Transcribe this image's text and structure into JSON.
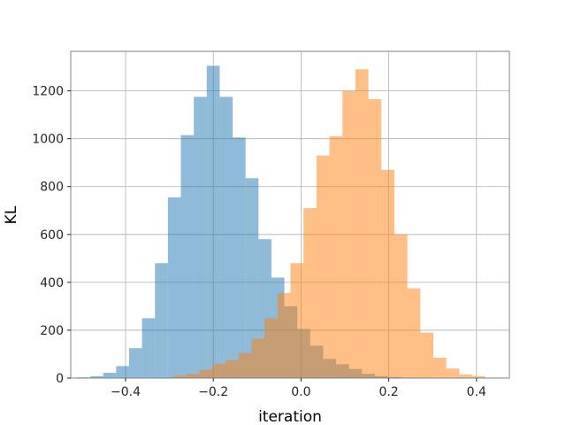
{
  "chart_data": {
    "type": "bar",
    "title": "",
    "xlabel": "iteration",
    "ylabel": "KL",
    "xlim": [
      -0.525,
      0.475
    ],
    "ylim": [
      0,
      1365
    ],
    "grid": true,
    "x_ticks": [
      -0.4,
      -0.2,
      0.0,
      0.2,
      0.4
    ],
    "x_tick_labels": [
      "−0.4",
      "−0.2",
      "0.0",
      "0.2",
      "0.4"
    ],
    "y_ticks": [
      0,
      200,
      400,
      600,
      800,
      1000,
      1200
    ],
    "y_tick_labels": [
      "0",
      "200",
      "400",
      "600",
      "800",
      "1000",
      "1200"
    ],
    "series": [
      {
        "color": "#1f77b4",
        "alpha": 0.5,
        "bin_start": -0.51,
        "bin_width": 0.0295,
        "values": [
          3,
          8,
          22,
          50,
          125,
          250,
          480,
          755,
          1015,
          1175,
          1305,
          1175,
          1005,
          835,
          580,
          420,
          300,
          205,
          135,
          80,
          58,
          38,
          18,
          8,
          4,
          2
        ]
      },
      {
        "color": "#ff7f0e",
        "alpha": 0.5,
        "bin_start": -0.32,
        "bin_width": 0.0296,
        "values": [
          2,
          10,
          18,
          35,
          60,
          75,
          105,
          165,
          250,
          355,
          480,
          710,
          930,
          1010,
          1200,
          1290,
          1165,
          870,
          600,
          375,
          190,
          85,
          40,
          15,
          8
        ]
      }
    ]
  }
}
